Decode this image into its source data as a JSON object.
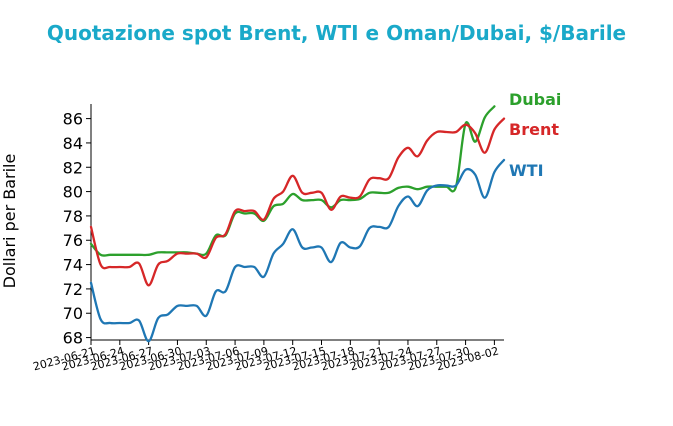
{
  "chart_data": {
    "type": "line",
    "title": "Quotazione spot Brent, WTI e Oman/Dubai, $/Barile",
    "xlabel": "",
    "ylabel": "Dollari per Barile",
    "ylim": [
      67.8,
      87.2
    ],
    "yticks": [
      68,
      70,
      72,
      74,
      76,
      78,
      80,
      82,
      84,
      86
    ],
    "xticks": [
      "2023-06-21",
      "2023-06-24",
      "2023-06-27",
      "2023-06-30",
      "2023-07-03",
      "2023-07-06",
      "2023-07-09",
      "2023-07-12",
      "2023-07-15",
      "2023-07-18",
      "2023-07-21",
      "2023-07-24",
      "2023-07-27",
      "2023-07-30",
      "2023-08-02"
    ],
    "x": [
      "2023-06-21",
      "2023-06-22",
      "2023-06-23",
      "2023-06-24",
      "2023-06-25",
      "2023-06-26",
      "2023-06-27",
      "2023-06-28",
      "2023-06-29",
      "2023-06-30",
      "2023-07-01",
      "2023-07-02",
      "2023-07-03",
      "2023-07-04",
      "2023-07-05",
      "2023-07-06",
      "2023-07-07",
      "2023-07-08",
      "2023-07-09",
      "2023-07-10",
      "2023-07-11",
      "2023-07-12",
      "2023-07-13",
      "2023-07-14",
      "2023-07-15",
      "2023-07-16",
      "2023-07-17",
      "2023-07-18",
      "2023-07-19",
      "2023-07-20",
      "2023-07-21",
      "2023-07-22",
      "2023-07-23",
      "2023-07-24",
      "2023-07-25",
      "2023-07-26",
      "2023-07-27",
      "2023-07-28",
      "2023-07-29",
      "2023-07-30",
      "2023-07-31",
      "2023-08-01",
      "2023-08-02",
      "2023-08-03"
    ],
    "grid": false,
    "series": [
      {
        "name": "Dubai",
        "color": "#2ca02c",
        "values": [
          75.7,
          74.8,
          74.8,
          74.8,
          74.8,
          74.8,
          74.8,
          75.0,
          75.0,
          75.0,
          75.0,
          74.9,
          74.9,
          76.4,
          76.4,
          78.2,
          78.2,
          78.2,
          77.6,
          78.8,
          79.0,
          79.8,
          79.3,
          79.3,
          79.3,
          78.7,
          79.3,
          79.3,
          79.4,
          79.9,
          79.9,
          79.9,
          80.3,
          80.4,
          80.2,
          80.4,
          80.4,
          80.4,
          80.4,
          85.6,
          84.1,
          86.1,
          87.0,
          null
        ]
      },
      {
        "name": "Brent",
        "color": "#d62728",
        "values": [
          77.1,
          74.0,
          73.8,
          73.8,
          73.8,
          74.1,
          72.3,
          74.0,
          74.3,
          74.9,
          74.9,
          74.9,
          74.6,
          76.2,
          76.5,
          78.4,
          78.4,
          78.4,
          77.7,
          79.4,
          80.0,
          81.3,
          79.9,
          79.9,
          79.9,
          78.5,
          79.6,
          79.5,
          79.6,
          81.0,
          81.1,
          81.1,
          82.8,
          83.6,
          82.9,
          84.2,
          84.9,
          84.9,
          84.9,
          85.5,
          84.8,
          83.2,
          85.1,
          86.0
        ]
      },
      {
        "name": "WTI",
        "color": "#1f77b4",
        "values": [
          72.5,
          69.5,
          69.2,
          69.2,
          69.2,
          69.4,
          67.7,
          69.6,
          69.9,
          70.6,
          70.6,
          70.6,
          69.8,
          71.8,
          71.8,
          73.8,
          73.8,
          73.8,
          73.0,
          74.9,
          75.7,
          76.9,
          75.4,
          75.4,
          75.4,
          74.2,
          75.8,
          75.4,
          75.5,
          77.0,
          77.1,
          77.1,
          78.8,
          79.6,
          78.8,
          80.1,
          80.5,
          80.5,
          80.5,
          81.8,
          81.4,
          79.5,
          81.6,
          82.6
        ]
      }
    ]
  }
}
